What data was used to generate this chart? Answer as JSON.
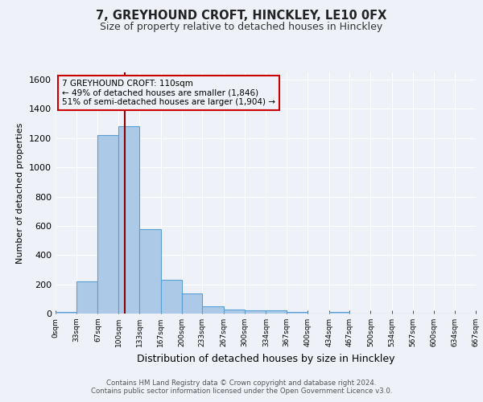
{
  "title": "7, GREYHOUND CROFT, HINCKLEY, LE10 0FX",
  "subtitle": "Size of property relative to detached houses in Hinckley",
  "xlabel": "Distribution of detached houses by size in Hinckley",
  "ylabel": "Number of detached properties",
  "footnote1": "Contains HM Land Registry data © Crown copyright and database right 2024.",
  "footnote2": "Contains public sector information licensed under the Open Government Licence v3.0.",
  "bin_edges": [
    0,
    33,
    67,
    100,
    133,
    167,
    200,
    233,
    267,
    300,
    334,
    367,
    400,
    434,
    467,
    500,
    534,
    567,
    600,
    634,
    667
  ],
  "bar_heights": [
    10,
    220,
    1220,
    1280,
    580,
    230,
    140,
    50,
    30,
    22,
    20,
    10,
    0,
    10,
    0,
    0,
    0,
    0,
    0,
    0
  ],
  "bar_color": "#adc9e8",
  "bar_edge_color": "#5a9fd4",
  "property_value": 110,
  "vline_color": "#8b0000",
  "annotation_text": "7 GREYHOUND CROFT: 110sqm\n← 49% of detached houses are smaller (1,846)\n51% of semi-detached houses are larger (1,904) →",
  "annotation_box_edgecolor": "#cc0000",
  "ylim": [
    0,
    1650
  ],
  "bg_color": "#eef2f8",
  "grid_color": "#ffffff",
  "tick_labels": [
    "0sqm",
    "33sqm",
    "67sqm",
    "100sqm",
    "133sqm",
    "167sqm",
    "200sqm",
    "233sqm",
    "267sqm",
    "300sqm",
    "334sqm",
    "367sqm",
    "400sqm",
    "434sqm",
    "467sqm",
    "500sqm",
    "534sqm",
    "567sqm",
    "600sqm",
    "634sqm",
    "667sqm"
  ]
}
